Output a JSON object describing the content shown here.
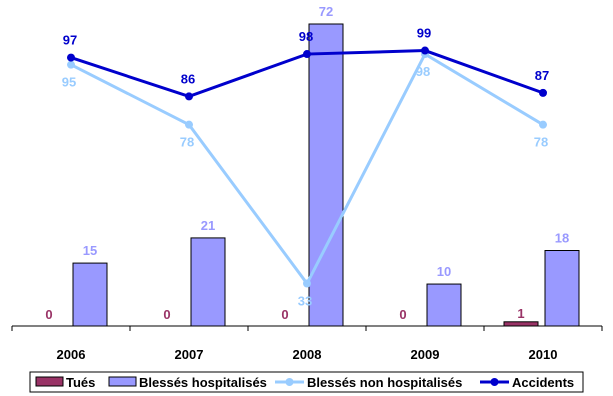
{
  "chart_data": {
    "type": "bar",
    "categories": [
      "2006",
      "2007",
      "2008",
      "2009",
      "2010"
    ],
    "series": [
      {
        "name": "Tués",
        "kind": "bar",
        "color": "#993366",
        "values": [
          0,
          0,
          0,
          0,
          1
        ]
      },
      {
        "name": "Blessés hospitalisés",
        "kind": "bar",
        "color": "#9999ff",
        "values": [
          15,
          21,
          72,
          10,
          18
        ]
      },
      {
        "name": "Blessés non hospitalisés",
        "kind": "line",
        "color": "#99ccff",
        "values": [
          95,
          78,
          33,
          98,
          78
        ]
      },
      {
        "name": "Accidents",
        "kind": "line",
        "color": "#0000cc",
        "values": [
          97,
          86,
          98,
          99,
          87
        ]
      }
    ],
    "bar_axis_max": 72,
    "line_axis_range": [
      0,
      100
    ],
    "grid": false,
    "legend_position": "bottom",
    "title": "",
    "xlabel": "",
    "ylabel": ""
  }
}
